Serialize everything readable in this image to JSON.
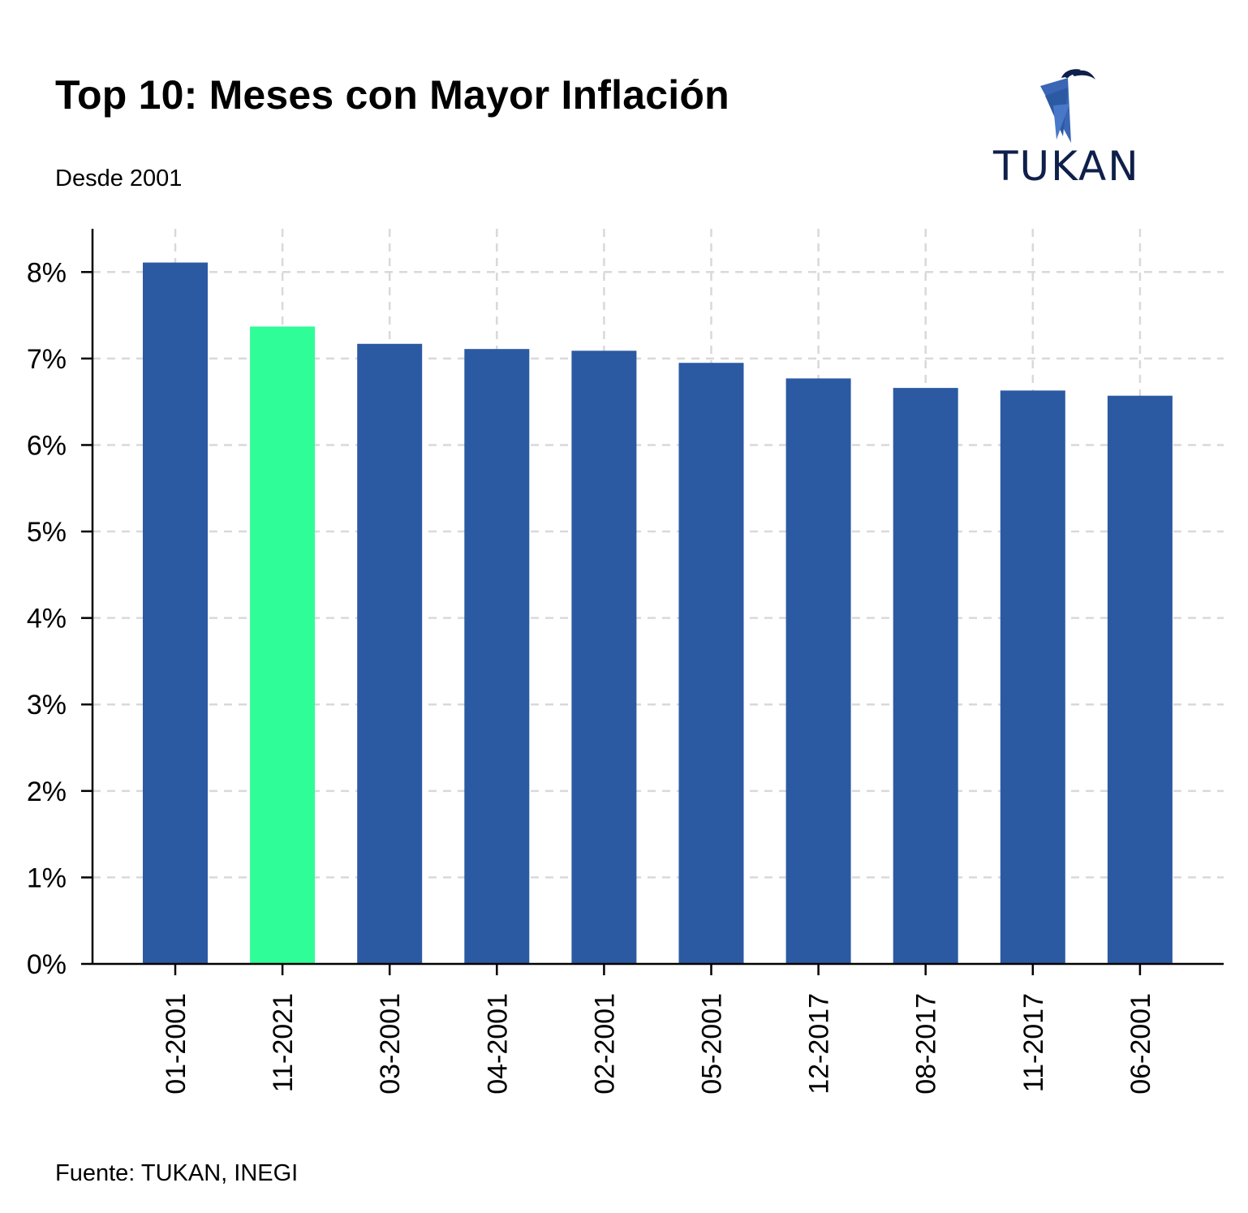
{
  "header": {
    "title": "Top 10: Meses con Mayor Inflación",
    "subtitle": "Desde 2001",
    "source": "Fuente: TUKAN, INEGI"
  },
  "logo": {
    "text": "TUKAN",
    "icon": "toucan-icon"
  },
  "colors": {
    "bar": "#2b5aa3",
    "highlight": "#2ffd97",
    "grid": "#d9d9d9",
    "axis": "#000000"
  },
  "chart_data": {
    "type": "bar",
    "title": "Top 10: Meses con Mayor Inflación",
    "xlabel": "",
    "ylabel": "",
    "categories": [
      "01-2001",
      "11-2021",
      "03-2001",
      "04-2001",
      "02-2001",
      "05-2001",
      "12-2017",
      "08-2017",
      "11-2017",
      "06-2001"
    ],
    "values": [
      8.11,
      7.37,
      7.17,
      7.11,
      7.09,
      6.95,
      6.77,
      6.66,
      6.63,
      6.57
    ],
    "highlight_index": 1,
    "ylim": [
      0,
      8.5
    ],
    "yticks": [
      0,
      1,
      2,
      3,
      4,
      5,
      6,
      7,
      8
    ],
    "ytick_labels": [
      "0%",
      "1%",
      "2%",
      "3%",
      "4%",
      "5%",
      "6%",
      "7%",
      "8%"
    ],
    "grid": true,
    "grid_style": "dashed"
  }
}
